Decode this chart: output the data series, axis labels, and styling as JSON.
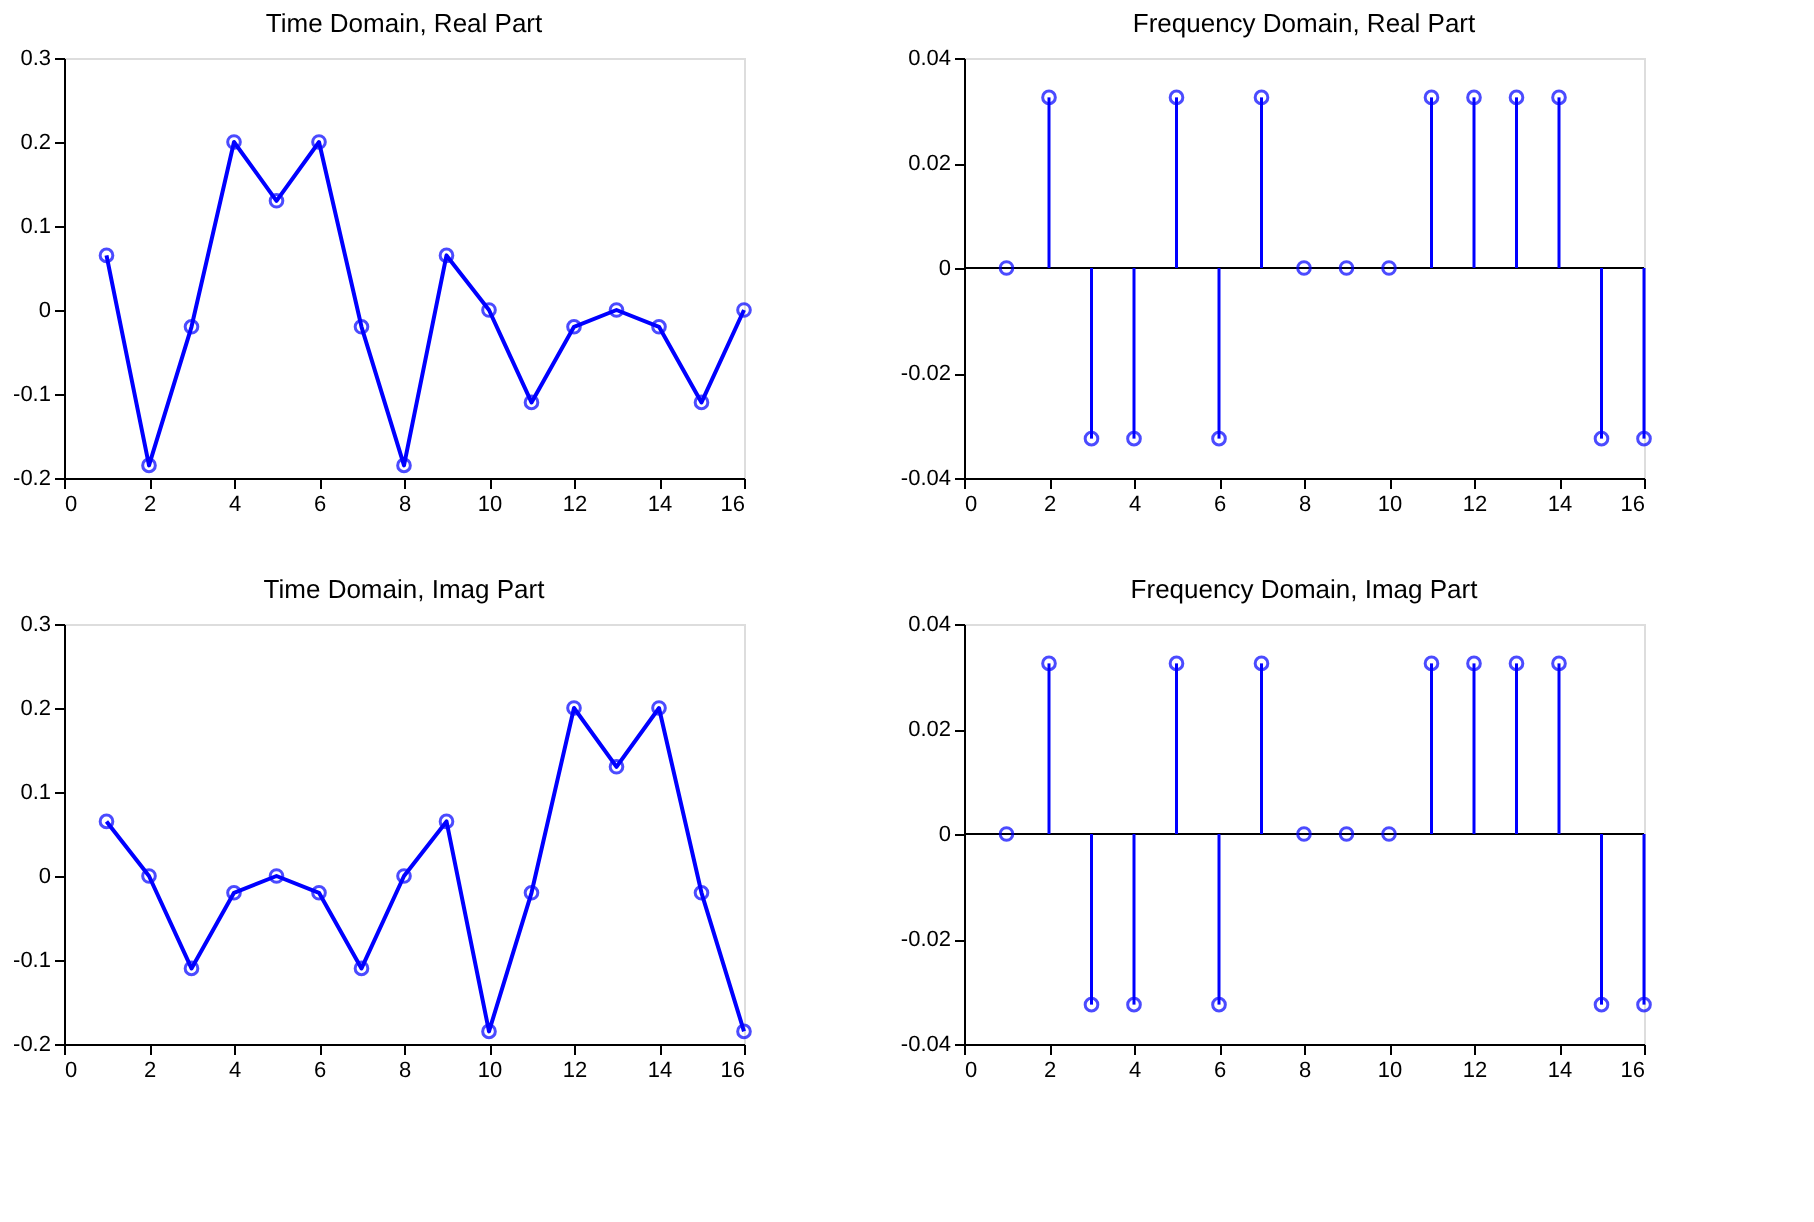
{
  "chart_data": [
    {
      "type": "line",
      "title": "Time Domain, Real Part",
      "x": [
        1,
        2,
        3,
        4,
        5,
        6,
        7,
        8,
        9,
        10,
        11,
        12,
        13,
        14,
        15,
        16
      ],
      "series": [
        {
          "color": "#0000ff",
          "values": [
            0.065,
            -0.185,
            -0.02,
            0.2,
            0.13,
            0.2,
            -0.02,
            -0.185,
            0.065,
            0,
            -0.11,
            -0.02,
            0,
            -0.02,
            -0.11,
            0
          ]
        }
      ],
      "xlim": [
        0,
        16
      ],
      "xticks": [
        0,
        2,
        4,
        6,
        8,
        10,
        12,
        14,
        16
      ],
      "ylim": [
        -0.2,
        0.3
      ],
      "yticks": [
        -0.2,
        -0.1,
        0,
        0.1,
        0.2,
        0.3
      ],
      "marker": "circle",
      "grid": false
    },
    {
      "type": "lollipop",
      "title": "Frequency Domain, Real Part",
      "x": [
        1,
        2,
        3,
        4,
        5,
        6,
        7,
        8,
        9,
        10,
        11,
        12,
        13,
        14,
        15,
        16
      ],
      "series": [
        {
          "color": "#0000ff",
          "values": [
            0,
            0.0325,
            -0.0325,
            -0.0325,
            0.0325,
            -0.0325,
            0.0325,
            0,
            0,
            0,
            0.0325,
            0.0325,
            0.0325,
            0.0325,
            -0.0325,
            -0.0325
          ]
        }
      ],
      "xlim": [
        0,
        16
      ],
      "xticks": [
        0,
        2,
        4,
        6,
        8,
        10,
        12,
        14,
        16
      ],
      "ylim": [
        -0.04,
        0.04
      ],
      "yticks": [
        -0.04,
        -0.02,
        0,
        0.02,
        0.04
      ],
      "marker": "circle",
      "grid": false,
      "ref_lines": [
        {
          "axis": "y",
          "value": 0,
          "color": "#000000"
        }
      ]
    },
    {
      "type": "line",
      "title": "Time Domain, Imag Part",
      "x": [
        1,
        2,
        3,
        4,
        5,
        6,
        7,
        8,
        9,
        10,
        11,
        12,
        13,
        14,
        15,
        16
      ],
      "series": [
        {
          "color": "#0000ff",
          "values": [
            0.065,
            0,
            -0.11,
            -0.02,
            0,
            -0.02,
            -0.11,
            0,
            0.065,
            -0.185,
            -0.02,
            0.2,
            0.13,
            0.2,
            -0.02,
            -0.185
          ]
        }
      ],
      "xlim": [
        0,
        16
      ],
      "xticks": [
        0,
        2,
        4,
        6,
        8,
        10,
        12,
        14,
        16
      ],
      "ylim": [
        -0.2,
        0.3
      ],
      "yticks": [
        -0.2,
        -0.1,
        0,
        0.1,
        0.2,
        0.3
      ],
      "marker": "circle",
      "grid": false
    },
    {
      "type": "lollipop",
      "title": "Frequency Domain, Imag Part",
      "x": [
        1,
        2,
        3,
        4,
        5,
        6,
        7,
        8,
        9,
        10,
        11,
        12,
        13,
        14,
        15,
        16
      ],
      "series": [
        {
          "color": "#0000ff",
          "values": [
            0,
            0.0325,
            -0.0325,
            -0.0325,
            0.0325,
            -0.0325,
            0.0325,
            0,
            0,
            0,
            0.0325,
            0.0325,
            0.0325,
            0.0325,
            -0.0325,
            -0.0325
          ]
        }
      ],
      "xlim": [
        0,
        16
      ],
      "xticks": [
        0,
        2,
        4,
        6,
        8,
        10,
        12,
        14,
        16
      ],
      "ylim": [
        -0.04,
        0.04
      ],
      "yticks": [
        -0.04,
        -0.02,
        0,
        0.02,
        0.04
      ],
      "marker": "circle",
      "grid": false,
      "ref_lines": [
        {
          "axis": "y",
          "value": 0,
          "color": "#000000"
        }
      ]
    }
  ]
}
